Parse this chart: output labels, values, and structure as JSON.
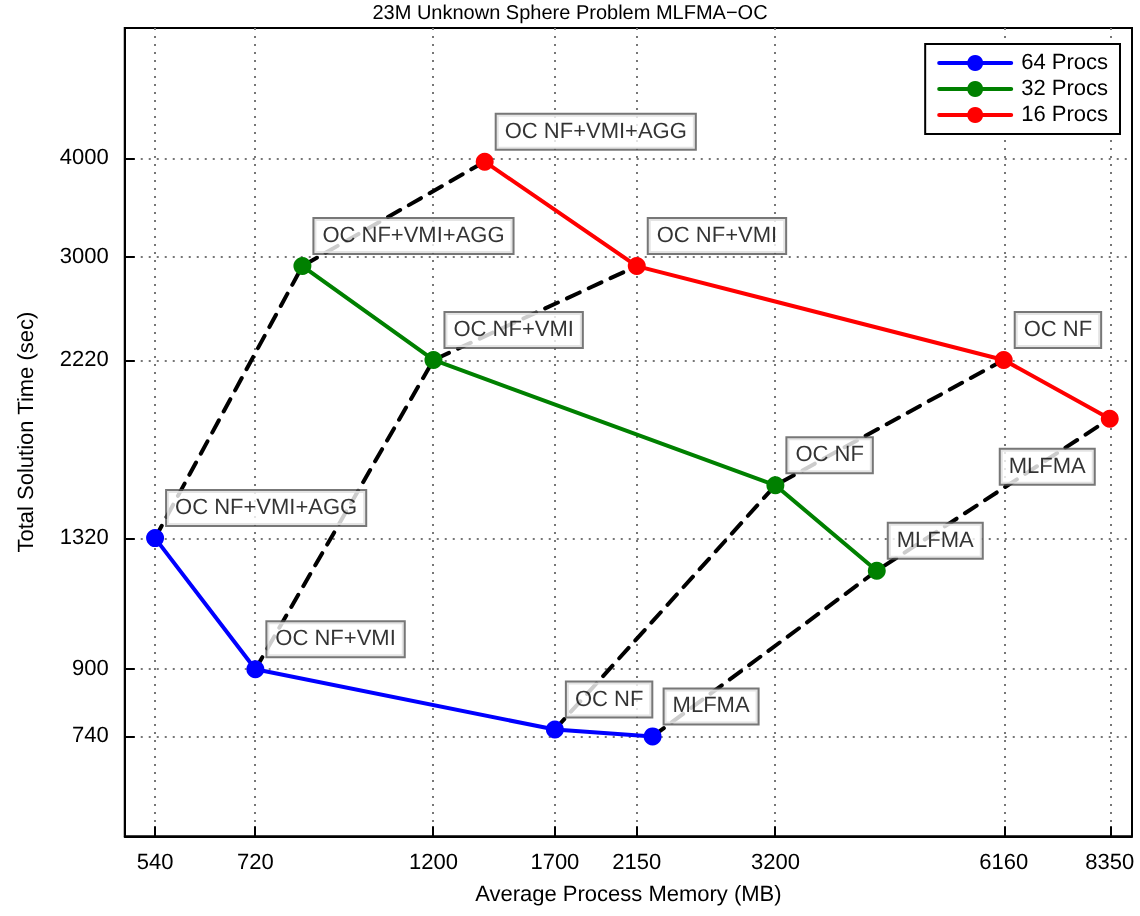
{
  "chart_data": {
    "type": "line",
    "title": "23M Unknown Sphere Problem MLFMA−OC",
    "xlabel": "Average Process Memory (MB)",
    "ylabel": "Total Solution Time (sec)",
    "log": "xy",
    "grid": true,
    "legend": "top right",
    "marker": "circle",
    "xlim": [
      495,
      8900
    ],
    "xticks": [
      540,
      720,
      1200,
      1700,
      2150,
      3200,
      6160,
      8350
    ],
    "ylim": [
      553,
      5850
    ],
    "yticks": [
      740,
      900,
      1320,
      2220,
      3000,
      4000
    ],
    "series": [
      {
        "name": "64 Procs",
        "color": "#0000ff",
        "x": [
          540,
          720,
          1700,
          2250
        ],
        "values": [
          1320,
          900,
          755,
          740
        ]
      },
      {
        "name": "32 Procs",
        "color": "#008000",
        "x": [
          824,
          1200,
          3200,
          4280
        ],
        "values": [
          2920,
          2220,
          1540,
          1200
        ]
      },
      {
        "name": "16 Procs",
        "color": "#ff0000",
        "x": [
          1390,
          2150,
          6160,
          8350
        ],
        "values": [
          3960,
          2920,
          2220,
          1870
        ]
      },
      {
        "color": "#000000",
        "line_style": "dashed",
        "marker": "none",
        "x": [
          540,
          824,
          1390
        ],
        "values": [
          1320,
          2920,
          3960
        ]
      },
      {
        "color": "#000000",
        "line_style": "dashed",
        "marker": "none",
        "x": [
          720,
          1200,
          2150
        ],
        "values": [
          900,
          2220,
          2920
        ]
      },
      {
        "color": "#000000",
        "line_style": "dashed",
        "marker": "none",
        "x": [
          1700,
          3200,
          6160
        ],
        "values": [
          755,
          1540,
          2220
        ]
      },
      {
        "color": "#000000",
        "line_style": "dashed",
        "marker": "none",
        "x": [
          2250,
          4280,
          8350
        ],
        "values": [
          740,
          1200,
          1870
        ]
      }
    ],
    "annotations": [
      {
        "text": "OC NF+VMI+AGG",
        "x": 540,
        "y": 1320
      },
      {
        "text": "OC NF+VMI",
        "x": 720,
        "y": 900
      },
      {
        "text": "OC NF",
        "x": 1700,
        "y": 755
      },
      {
        "text": "MLFMA",
        "x": 2250,
        "y": 740
      },
      {
        "text": "OC NF+VMI+AGG",
        "x": 824,
        "y": 2920
      },
      {
        "text": "OC NF+VMI",
        "x": 1200,
        "y": 2220
      },
      {
        "text": "OC NF",
        "x": 3200,
        "y": 1540
      },
      {
        "text": "MLFMA",
        "x": 4280,
        "y": 1200
      },
      {
        "text": "OC NF+VMI+AGG",
        "x": 1390,
        "y": 3960
      },
      {
        "text": "OC NF+VMI",
        "x": 2150,
        "y": 2920
      },
      {
        "text": "OC NF",
        "x": 6160,
        "y": 2220
      },
      {
        "text": "MLFMA",
        "x": 8350,
        "y": 1870
      }
    ]
  }
}
